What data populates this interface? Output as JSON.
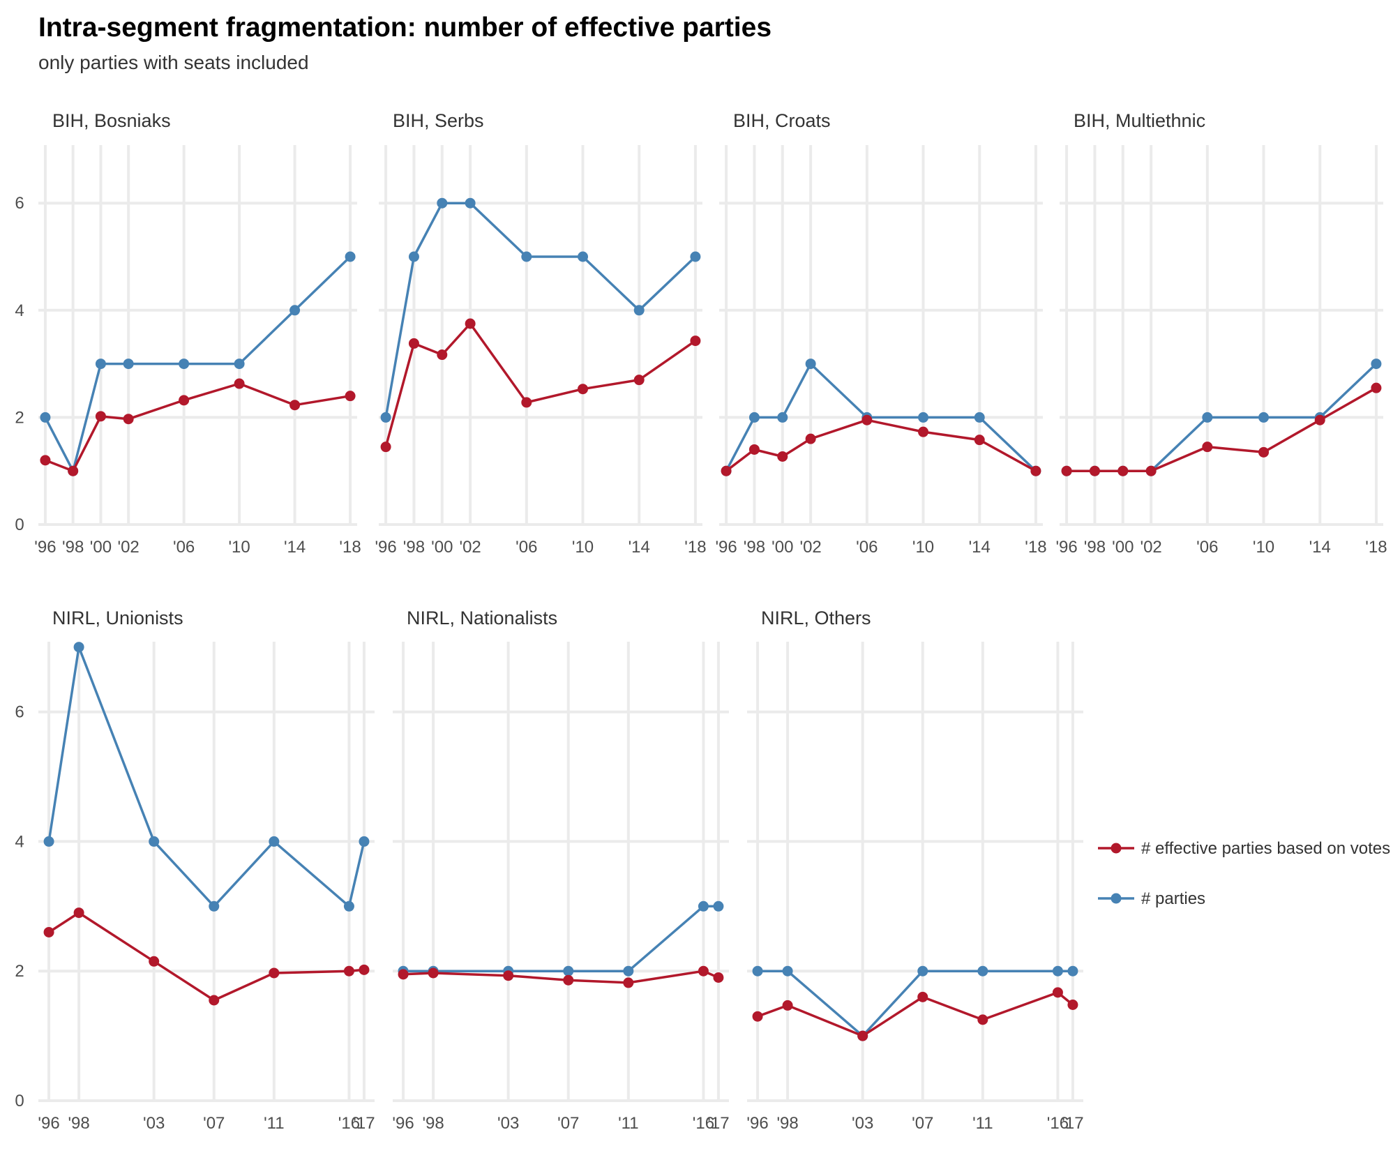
{
  "title": "Intra-segment fragmentation: number of effective parties",
  "subtitle": "only parties with seats included",
  "colors": {
    "votes": "#b2182b",
    "parties": "#4682b4"
  },
  "chart_data": {
    "type": "line",
    "y_ticks": [
      0,
      2,
      4,
      6
    ],
    "legend": {
      "position": "right",
      "entries": [
        {
          "key": "votes",
          "label": "# effective parties based on votes"
        },
        {
          "key": "parties",
          "label": "# parties"
        }
      ]
    },
    "panels": [
      {
        "label": "BIH, Bosniaks",
        "x_ticks": [
          "'96",
          "'98",
          "'00",
          "'02",
          "'06",
          "'10",
          "'14",
          "'18"
        ],
        "x": [
          1996,
          1998,
          2000,
          2002,
          2006,
          2010,
          2014,
          2018
        ],
        "votes": [
          1.2,
          1.0,
          2.02,
          1.97,
          2.32,
          2.63,
          2.23,
          2.4
        ],
        "parties": [
          2,
          1,
          3,
          3,
          3,
          3,
          4,
          5
        ]
      },
      {
        "label": "BIH, Serbs",
        "x_ticks": [
          "'96",
          "'98",
          "'00",
          "'02",
          "'06",
          "'10",
          "'14",
          "'18"
        ],
        "x": [
          1996,
          1998,
          2000,
          2002,
          2006,
          2010,
          2014,
          2018
        ],
        "votes": [
          1.45,
          3.38,
          3.17,
          3.75,
          2.28,
          2.53,
          2.7,
          3.43
        ],
        "parties": [
          2,
          5,
          6,
          6,
          5,
          5,
          4,
          5
        ]
      },
      {
        "label": "BIH, Croats",
        "x_ticks": [
          "'96",
          "'98",
          "'00",
          "'02",
          "'06",
          "'10",
          "'14",
          "'18"
        ],
        "x": [
          1996,
          1998,
          2000,
          2002,
          2006,
          2010,
          2014,
          2018
        ],
        "votes": [
          1.0,
          1.4,
          1.27,
          1.6,
          1.95,
          1.73,
          1.58,
          1.0
        ],
        "parties": [
          1,
          2,
          2,
          3,
          2,
          2,
          2,
          1
        ]
      },
      {
        "label": "BIH, Multiethnic",
        "x_ticks": [
          "'96",
          "'98",
          "'00",
          "'02",
          "'06",
          "'10",
          "'14",
          "'18"
        ],
        "x": [
          1996,
          1998,
          2000,
          2002,
          2006,
          2010,
          2014,
          2018
        ],
        "votes": [
          1.0,
          1.0,
          1.0,
          1.0,
          1.45,
          1.35,
          1.95,
          2.55
        ],
        "parties": [
          1,
          1,
          1,
          1,
          2,
          2,
          2,
          3
        ]
      },
      {
        "label": "NIRL, Unionists",
        "x_ticks": [
          "'96",
          "'98",
          "'03",
          "'07",
          "'11",
          "'16",
          "'17"
        ],
        "x": [
          1996,
          1998,
          2003,
          2007,
          2011,
          2016,
          2017
        ],
        "votes": [
          2.6,
          2.9,
          2.15,
          1.55,
          1.97,
          2.0,
          2.02
        ],
        "parties": [
          4,
          7,
          4,
          3,
          4,
          3,
          4
        ]
      },
      {
        "label": "NIRL, Nationalists",
        "x_ticks": [
          "'96",
          "'98",
          "'03",
          "'07",
          "'11",
          "'16",
          "'17"
        ],
        "x": [
          1996,
          1998,
          2003,
          2007,
          2011,
          2016,
          2017
        ],
        "votes": [
          1.95,
          1.97,
          1.93,
          1.86,
          1.82,
          2.0,
          1.9
        ],
        "parties": [
          2,
          2,
          2,
          2,
          2,
          3,
          3
        ]
      },
      {
        "label": "NIRL, Others",
        "x_ticks": [
          "'96",
          "'98",
          "'03",
          "'07",
          "'11",
          "'16",
          "'17"
        ],
        "x": [
          1996,
          1998,
          2003,
          2007,
          2011,
          2016,
          2017
        ],
        "votes": [
          1.3,
          1.47,
          1.0,
          1.6,
          1.25,
          1.67,
          1.48
        ],
        "parties": [
          2,
          2,
          1,
          2,
          2,
          2,
          2
        ]
      }
    ]
  }
}
